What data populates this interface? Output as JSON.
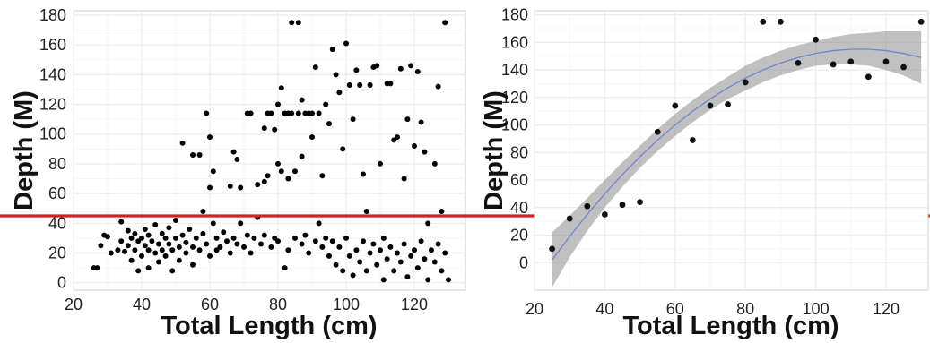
{
  "chart_data": [
    {
      "type": "scatter",
      "xlabel": "Total Length (cm)",
      "ylabel": "Depth (M)",
      "xlim": [
        20,
        135
      ],
      "ylim": [
        -5,
        183
      ],
      "xticks": [
        20,
        40,
        60,
        80,
        100,
        120
      ],
      "yticks": [
        0,
        20,
        40,
        60,
        80,
        100,
        120,
        140,
        160,
        180
      ],
      "grid": true,
      "reference_line": {
        "y": 45,
        "color": "#d42020"
      },
      "point_color": "#000000",
      "points": [
        [
          26,
          10
        ],
        [
          27,
          10
        ],
        [
          28,
          25
        ],
        [
          29,
          32
        ],
        [
          30,
          31
        ],
        [
          31,
          20
        ],
        [
          33,
          22
        ],
        [
          34,
          28
        ],
        [
          34,
          41
        ],
        [
          35,
          21
        ],
        [
          36,
          25
        ],
        [
          36,
          35
        ],
        [
          37,
          15
        ],
        [
          37,
          30
        ],
        [
          38,
          22
        ],
        [
          38,
          33
        ],
        [
          39,
          8
        ],
        [
          39,
          28
        ],
        [
          40,
          18
        ],
        [
          40,
          30
        ],
        [
          41,
          25
        ],
        [
          41,
          36
        ],
        [
          42,
          10
        ],
        [
          42,
          22
        ],
        [
          42,
          32
        ],
        [
          43,
          28
        ],
        [
          44,
          20
        ],
        [
          44,
          39
        ],
        [
          45,
          26
        ],
        [
          45,
          14
        ],
        [
          46,
          22
        ],
        [
          46,
          33
        ],
        [
          47,
          30
        ],
        [
          47,
          18
        ],
        [
          48,
          26
        ],
        [
          48,
          37
        ],
        [
          49,
          8
        ],
        [
          49,
          22
        ],
        [
          50,
          30
        ],
        [
          50,
          42
        ],
        [
          51,
          24
        ],
        [
          51,
          15
        ],
        [
          52,
          94
        ],
        [
          52,
          32
        ],
        [
          53,
          27
        ],
        [
          53,
          20
        ],
        [
          54,
          36
        ],
        [
          55,
          86
        ],
        [
          55,
          24
        ],
        [
          55,
          12
        ],
        [
          56,
          30
        ],
        [
          57,
          86
        ],
        [
          57,
          22
        ],
        [
          58,
          48
        ],
        [
          58,
          33
        ],
        [
          59,
          114
        ],
        [
          59,
          26
        ],
        [
          60,
          98
        ],
        [
          60,
          64
        ],
        [
          60,
          18
        ],
        [
          61,
          75
        ],
        [
          61,
          40
        ],
        [
          62,
          30
        ],
        [
          62,
          22
        ],
        [
          63,
          24
        ],
        [
          64,
          34
        ],
        [
          65,
          28
        ],
        [
          66,
          65
        ],
        [
          66,
          20
        ],
        [
          67,
          88
        ],
        [
          67,
          30
        ],
        [
          68,
          83
        ],
        [
          68,
          26
        ],
        [
          69,
          40
        ],
        [
          69,
          64
        ],
        [
          70,
          24
        ],
        [
          71,
          114
        ],
        [
          71,
          32
        ],
        [
          72,
          114
        ],
        [
          72,
          20
        ],
        [
          73,
          30
        ],
        [
          74,
          66
        ],
        [
          74,
          44
        ],
        [
          75,
          26
        ],
        [
          76,
          104
        ],
        [
          76,
          68
        ],
        [
          76,
          32
        ],
        [
          77,
          114
        ],
        [
          77,
          72
        ],
        [
          78,
          114
        ],
        [
          78,
          24
        ],
        [
          79,
          103
        ],
        [
          79,
          30
        ],
        [
          80,
          120
        ],
        [
          80,
          80
        ],
        [
          80,
          28
        ],
        [
          81,
          131
        ],
        [
          81,
          75
        ],
        [
          82,
          114
        ],
        [
          82,
          10
        ],
        [
          83,
          114
        ],
        [
          83,
          70
        ],
        [
          83,
          22
        ],
        [
          84,
          175
        ],
        [
          84,
          114
        ],
        [
          85,
          75
        ],
        [
          85,
          30
        ],
        [
          86,
          175
        ],
        [
          86,
          114
        ],
        [
          87,
          123
        ],
        [
          87,
          85
        ],
        [
          87,
          26
        ],
        [
          88,
          114
        ],
        [
          88,
          32
        ],
        [
          89,
          114
        ],
        [
          89,
          20
        ],
        [
          90,
          98
        ],
        [
          90,
          114
        ],
        [
          91,
          145
        ],
        [
          91,
          28
        ],
        [
          92,
          114
        ],
        [
          92,
          40
        ],
        [
          93,
          72
        ],
        [
          93,
          24
        ],
        [
          94,
          120
        ],
        [
          94,
          30
        ],
        [
          95,
          107
        ],
        [
          95,
          18
        ],
        [
          96,
          157
        ],
        [
          96,
          28
        ],
        [
          97,
          140
        ],
        [
          97,
          12
        ],
        [
          98,
          128
        ],
        [
          98,
          24
        ],
        [
          99,
          90
        ],
        [
          99,
          8
        ],
        [
          100,
          161
        ],
        [
          100,
          30
        ],
        [
          101,
          133
        ],
        [
          101,
          18
        ],
        [
          102,
          110
        ],
        [
          102,
          5
        ],
        [
          103,
          143
        ],
        [
          103,
          22
        ],
        [
          104,
          133
        ],
        [
          104,
          14
        ],
        [
          105,
          73
        ],
        [
          105,
          28
        ],
        [
          106,
          48
        ],
        [
          106,
          8
        ],
        [
          107,
          133
        ],
        [
          107,
          20
        ],
        [
          108,
          145
        ],
        [
          108,
          26
        ],
        [
          109,
          146
        ],
        [
          109,
          12
        ],
        [
          110,
          80
        ],
        [
          110,
          22
        ],
        [
          111,
          30
        ],
        [
          111,
          2
        ],
        [
          112,
          134
        ],
        [
          112,
          16
        ],
        [
          113,
          134
        ],
        [
          113,
          24
        ],
        [
          114,
          96
        ],
        [
          114,
          8
        ],
        [
          115,
          98
        ],
        [
          115,
          20
        ],
        [
          116,
          144
        ],
        [
          116,
          14
        ],
        [
          117,
          70
        ],
        [
          117,
          26
        ],
        [
          118,
          110
        ],
        [
          118,
          4
        ],
        [
          119,
          146
        ],
        [
          119,
          18
        ],
        [
          120,
          92
        ],
        [
          120,
          22
        ],
        [
          121,
          142
        ],
        [
          121,
          10
        ],
        [
          122,
          108
        ],
        [
          122,
          28
        ],
        [
          123,
          88
        ],
        [
          123,
          16
        ],
        [
          124,
          40
        ],
        [
          124,
          2
        ],
        [
          125,
          22
        ],
        [
          126,
          80
        ],
        [
          126,
          14
        ],
        [
          127,
          132
        ],
        [
          127,
          26
        ],
        [
          128,
          48
        ],
        [
          128,
          8
        ],
        [
          129,
          175
        ],
        [
          129,
          20
        ],
        [
          130,
          2
        ]
      ]
    },
    {
      "type": "scatter",
      "xlabel": "Total Length (cm)",
      "ylabel": "Depth (M)",
      "xlim": [
        20,
        132
      ],
      "ylim": [
        -20,
        183
      ],
      "xticks": [
        20,
        40,
        60,
        80,
        100,
        120
      ],
      "yticks": [
        0,
        20,
        40,
        60,
        80,
        100,
        120,
        140,
        160,
        180
      ],
      "grid": true,
      "point_color": "#111111",
      "fit_color": "#6e86d6",
      "band_color": "#8c8c8c",
      "points": [
        [
          25,
          10
        ],
        [
          30,
          32
        ],
        [
          35,
          41
        ],
        [
          40,
          35
        ],
        [
          45,
          42
        ],
        [
          50,
          44
        ],
        [
          55,
          95
        ],
        [
          60,
          114
        ],
        [
          65,
          89
        ],
        [
          70,
          114
        ],
        [
          75,
          115
        ],
        [
          80,
          131
        ],
        [
          85,
          175
        ],
        [
          90,
          175
        ],
        [
          95,
          145
        ],
        [
          100,
          162
        ],
        [
          105,
          144
        ],
        [
          110,
          146
        ],
        [
          115,
          135
        ],
        [
          120,
          146
        ],
        [
          125,
          142
        ],
        [
          130,
          175
        ]
      ],
      "fit": [
        [
          25,
          2
        ],
        [
          30,
          19
        ],
        [
          35,
          35
        ],
        [
          40,
          50
        ],
        [
          45,
          64
        ],
        [
          50,
          77
        ],
        [
          55,
          89
        ],
        [
          60,
          100
        ],
        [
          65,
          110
        ],
        [
          70,
          119
        ],
        [
          75,
          127
        ],
        [
          80,
          134
        ],
        [
          85,
          140
        ],
        [
          90,
          145
        ],
        [
          95,
          149
        ],
        [
          100,
          152
        ],
        [
          105,
          154
        ],
        [
          110,
          155
        ],
        [
          115,
          155
        ],
        [
          120,
          154
        ],
        [
          125,
          152
        ],
        [
          130,
          149
        ]
      ],
      "fit_lower": [
        [
          25,
          -18
        ],
        [
          30,
          4
        ],
        [
          35,
          23
        ],
        [
          40,
          40
        ],
        [
          45,
          55
        ],
        [
          50,
          69
        ],
        [
          55,
          81
        ],
        [
          60,
          92
        ],
        [
          65,
          102
        ],
        [
          70,
          111
        ],
        [
          75,
          119
        ],
        [
          80,
          125
        ],
        [
          85,
          131
        ],
        [
          90,
          136
        ],
        [
          95,
          140
        ],
        [
          100,
          143
        ],
        [
          105,
          144
        ],
        [
          110,
          144
        ],
        [
          115,
          143
        ],
        [
          120,
          140
        ],
        [
          125,
          136
        ],
        [
          130,
          130
        ]
      ],
      "fit_upper": [
        [
          25,
          22
        ],
        [
          30,
          34
        ],
        [
          35,
          47
        ],
        [
          40,
          60
        ],
        [
          45,
          73
        ],
        [
          50,
          85
        ],
        [
          55,
          97
        ],
        [
          60,
          108
        ],
        [
          65,
          118
        ],
        [
          70,
          127
        ],
        [
          75,
          135
        ],
        [
          80,
          143
        ],
        [
          85,
          149
        ],
        [
          90,
          154
        ],
        [
          95,
          158
        ],
        [
          100,
          161
        ],
        [
          105,
          164
        ],
        [
          110,
          166
        ],
        [
          115,
          167
        ],
        [
          120,
          168
        ],
        [
          125,
          168
        ],
        [
          130,
          168
        ]
      ]
    }
  ]
}
